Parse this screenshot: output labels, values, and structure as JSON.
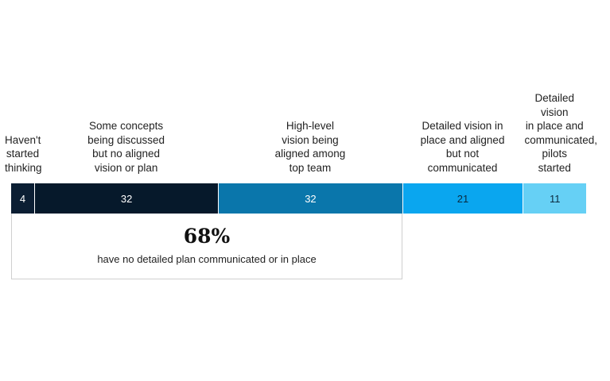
{
  "chart_data": {
    "type": "bar",
    "orientation": "horizontal-stacked",
    "categories": [
      "Haven't\nstarted\nthinking",
      "Some concepts\nbeing discussed\nbut no aligned\nvision or plan",
      "High-level\nvision being\naligned among\ntop team",
      "Detailed vision in\nplace and aligned\nbut not\ncommunicated",
      "Detailed vision\nin place and\ncommunicated,\npilots started"
    ],
    "values": [
      4,
      32,
      32,
      21,
      11
    ],
    "value_labels": [
      "4",
      "32",
      "32",
      "21",
      "11"
    ],
    "colors": [
      "#0b1e33",
      "#06192b",
      "#0a76ab",
      "#0aa6ef",
      "#66d0f5"
    ],
    "text_colors": [
      "#ffffff",
      "#ffffff",
      "#ffffff",
      "#0b2a3f",
      "#0b2a3f"
    ],
    "xlim": [
      0,
      100
    ],
    "grid": false,
    "callout": {
      "value": "68%",
      "text": "have no detailed plan communicated or in place",
      "covers_categories": [
        0,
        1,
        2
      ]
    }
  }
}
